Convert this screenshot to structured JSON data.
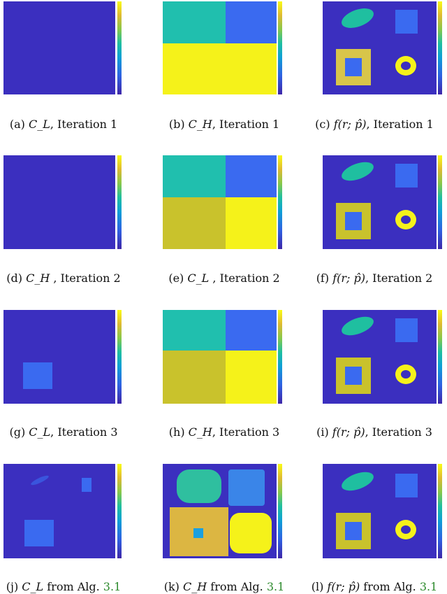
{
  "figure": {
    "rows": [
      {
        "panels": [
          {
            "label": "(a)",
            "caption_math": "C_L",
            "caption_text": ", Iteration 1"
          },
          {
            "label": "(b)",
            "caption_math": "C_H",
            "caption_text": ", Iteration 1"
          },
          {
            "label": "(c)",
            "caption_math": "f(r; p̂)",
            "caption_text": ", Iteration 1"
          }
        ]
      },
      {
        "panels": [
          {
            "label": "(d)",
            "caption_math": "C_H",
            "caption_text": " , Iteration 2"
          },
          {
            "label": "(e)",
            "caption_math": "C_L",
            "caption_text": " , Iteration 2"
          },
          {
            "label": "(f)",
            "caption_math": "f(r; p̂)",
            "caption_text": ", Iteration 2"
          }
        ]
      },
      {
        "panels": [
          {
            "label": "(g)",
            "caption_math": "C_L",
            "caption_text": ", Iteration 3"
          },
          {
            "label": "(h)",
            "caption_math": "C_H",
            "caption_text": ", Iteration 3"
          },
          {
            "label": "(i)",
            "caption_math": "f(r; p̂)",
            "caption_text": ", Iteration 3"
          }
        ]
      },
      {
        "panels": [
          {
            "label": "(j)",
            "caption_math": "C_L",
            "caption_text": " from Alg. ",
            "ref": "3.1"
          },
          {
            "label": "(k)",
            "caption_math": "C_H",
            "caption_text": " from Alg. ",
            "ref": "3.1"
          },
          {
            "label": "(l)",
            "caption_math": "f(r; p̂)",
            "caption_text": " from Alg. ",
            "ref": "3.1"
          }
        ]
      }
    ]
  },
  "colors": {
    "background_dark_blue": "#3b2fbf",
    "blue": "#3a6af0",
    "teal": "#20bfae",
    "yellow": "#f5f21a",
    "olive": "#c9c22c",
    "green_ref": "#2e8b2e"
  }
}
